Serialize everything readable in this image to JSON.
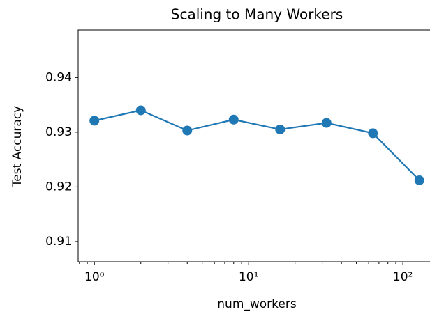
{
  "chart_data": {
    "type": "line",
    "title": "Scaling to Many Workers",
    "xlabel": "num_workers",
    "ylabel": "Test Accuracy",
    "xscale": "log",
    "x": [
      1,
      2,
      4,
      8,
      16,
      32,
      64,
      128
    ],
    "series": [
      {
        "name": "Test Accuracy",
        "color": "#1f77b4",
        "values": [
          0.9321,
          0.934,
          0.9303,
          0.9323,
          0.9305,
          0.9317,
          0.9298,
          0.9212
        ]
      }
    ],
    "xlim": [
      0.785,
      163
    ],
    "ylim": [
      0.9063,
      0.9487
    ],
    "xticks": [
      {
        "value": 1,
        "label": "10⁰"
      },
      {
        "value": 10,
        "label": "10¹"
      },
      {
        "value": 100,
        "label": "10²"
      }
    ],
    "xminorticks": [
      0.8,
      0.9,
      2,
      3,
      4,
      5,
      6,
      7,
      8,
      9,
      20,
      30,
      40,
      50,
      60,
      70,
      80,
      90
    ],
    "yticks": [
      0.91,
      0.92,
      0.93,
      0.94
    ],
    "grid": false
  }
}
